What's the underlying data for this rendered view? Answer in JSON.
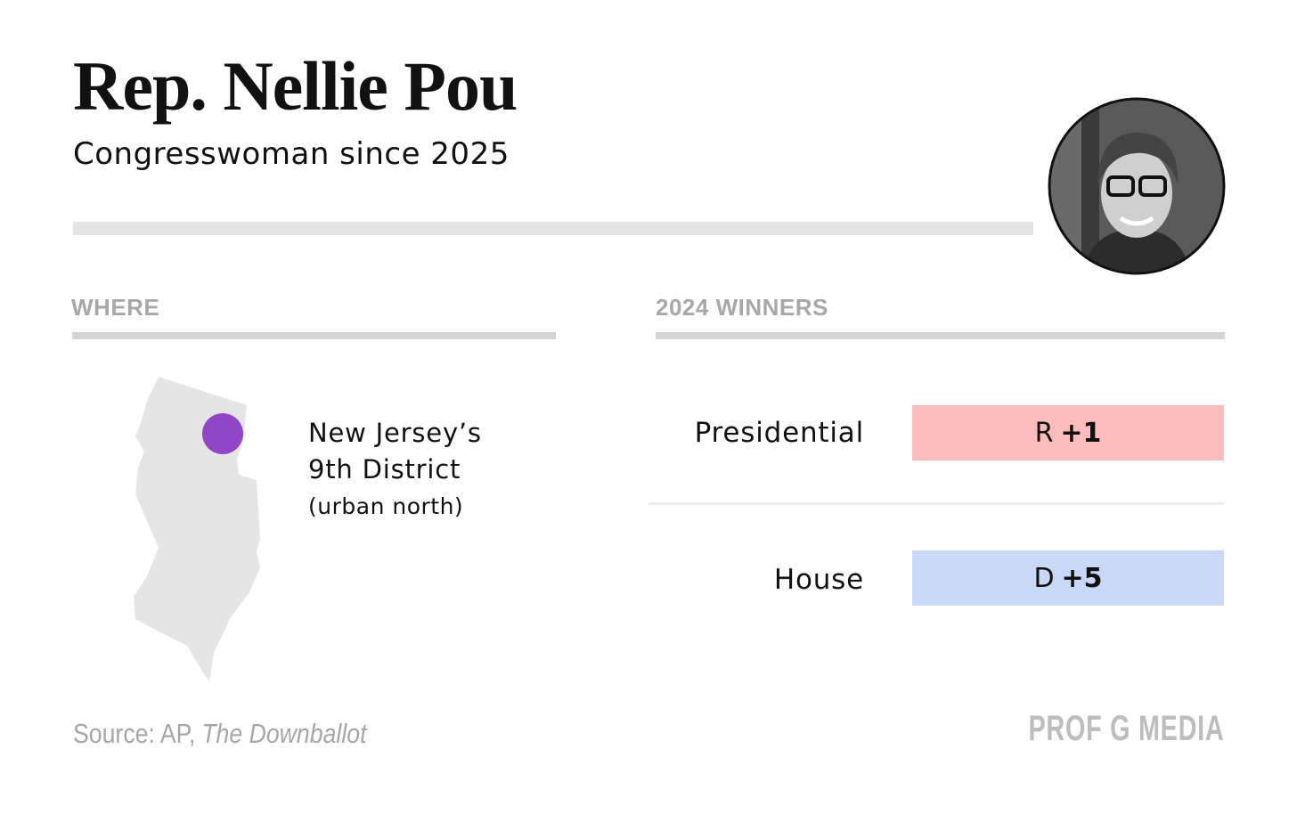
{
  "header": {
    "title": "Rep. Nellie Pou",
    "subtitle": "Congresswoman since 2025"
  },
  "where": {
    "heading": "WHERE",
    "district": [
      "New Jersey’s",
      "9th District"
    ],
    "note": "(urban north)"
  },
  "winners": {
    "heading": "2024 WINNERS",
    "rows": [
      {
        "label": "Presidential",
        "party": "R",
        "margin": "+1"
      },
      {
        "label": "House",
        "party": "D",
        "margin": "+5"
      }
    ]
  },
  "footer": {
    "source_prefix": "Source: AP,",
    "source_title": "The Downballot",
    "brand": "PROF G MEDIA"
  }
}
